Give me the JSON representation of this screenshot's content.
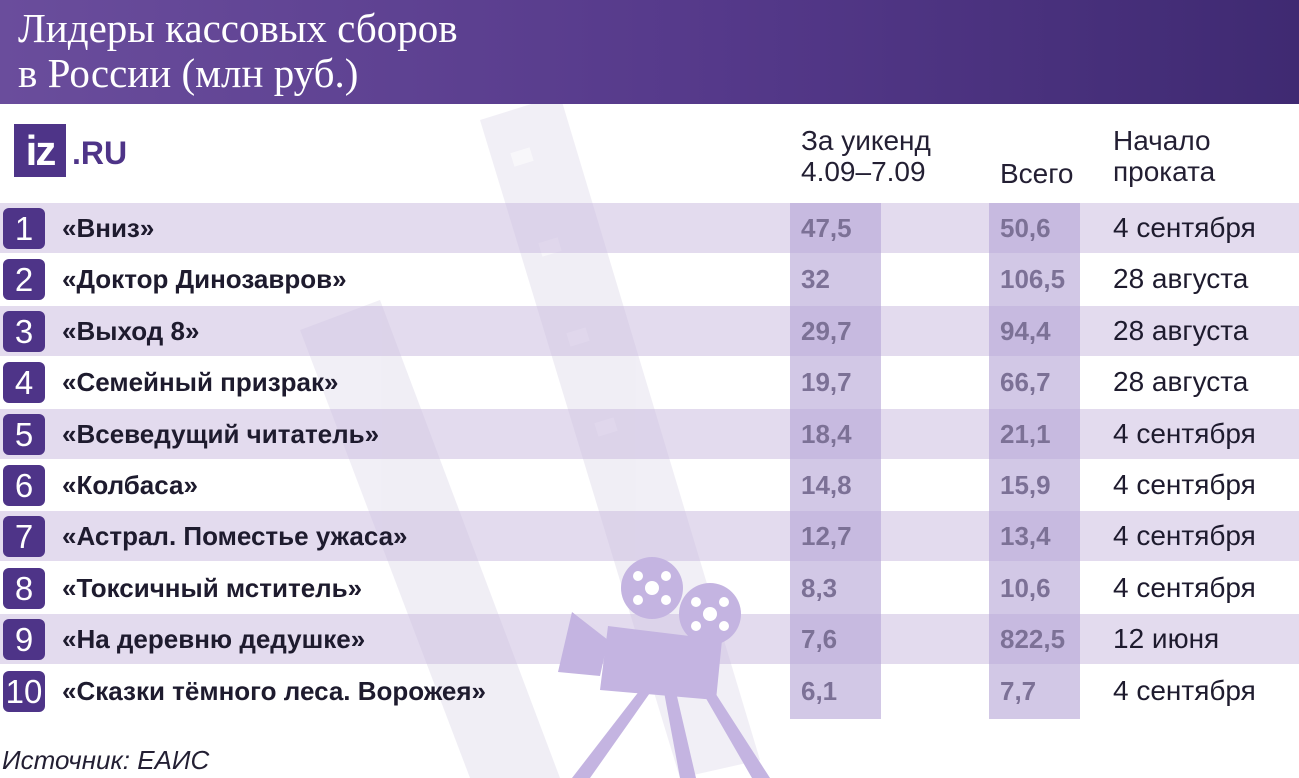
{
  "title": "Лидеры кассовых сборов\nв России (млн руб.)",
  "logo": {
    "mark": "iz",
    "domain": ".RU"
  },
  "chart_data": {
    "type": "table",
    "columns": {
      "weekend": "За уикенд\n4.09–7.09",
      "total": "Всего",
      "start": "Начало\nпроката"
    },
    "rows": [
      {
        "rank": "1",
        "title": "«Вниз»",
        "weekend": 47.5,
        "weekend_text": "47,5",
        "total": 50.6,
        "total_text": "50,6",
        "start": "4 сентября"
      },
      {
        "rank": "2",
        "title": "«Доктор Динозавров»",
        "weekend": 32,
        "weekend_text": "32",
        "total": 106.5,
        "total_text": "106,5",
        "start": "28 августа"
      },
      {
        "rank": "3",
        "title": "«Выход 8»",
        "weekend": 29.7,
        "weekend_text": "29,7",
        "total": 94.4,
        "total_text": "94,4",
        "start": "28 августа"
      },
      {
        "rank": "4",
        "title": "«Семейный призрак»",
        "weekend": 19.7,
        "weekend_text": "19,7",
        "total": 66.7,
        "total_text": "66,7",
        "start": "28 августа"
      },
      {
        "rank": "5",
        "title": "«Всеведущий читатель»",
        "weekend": 18.4,
        "weekend_text": "18,4",
        "total": 21.1,
        "total_text": "21,1",
        "start": "4 сентября"
      },
      {
        "rank": "6",
        "title": "«Колбаса»",
        "weekend": 14.8,
        "weekend_text": "14,8",
        "total": 15.9,
        "total_text": "15,9",
        "start": "4 сентября"
      },
      {
        "rank": "7",
        "title": "«Астрал. Поместье ужаса»",
        "weekend": 12.7,
        "weekend_text": "12,7",
        "total": 13.4,
        "total_text": "13,4",
        "start": "4 сентября"
      },
      {
        "rank": "8",
        "title": "«Токсичный мститель»",
        "weekend": 8.3,
        "weekend_text": "8,3",
        "total": 10.6,
        "total_text": "10,6",
        "start": "4 сентября"
      },
      {
        "rank": "9",
        "title": "«На деревню дедушке»",
        "weekend": 7.6,
        "weekend_text": "7,6",
        "total": 822.5,
        "total_text": "822,5",
        "start": "12 июня"
      },
      {
        "rank": "10",
        "title": "«Сказки тёмного леса. Ворожея»",
        "weekend": 6.1,
        "weekend_text": "6,1",
        "total": 7.7,
        "total_text": "7,7",
        "start": "4 сентября"
      }
    ]
  },
  "source": "Источник: ЕАИС",
  "colors": {
    "header": "#55398a",
    "badge": "#4e3488",
    "row_band": "#c7b8de",
    "column_band": "#b7a6d6"
  },
  "decoration": {
    "background_icons": [
      "film-strip-icon",
      "film-projector-icon"
    ]
  }
}
